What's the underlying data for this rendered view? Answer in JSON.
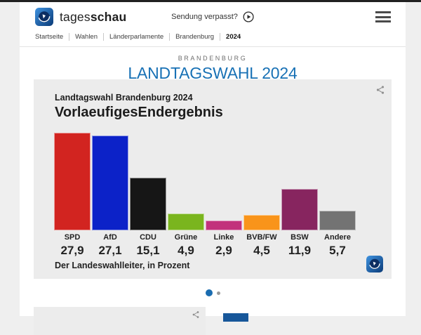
{
  "header": {
    "brand": {
      "light": "tages",
      "bold": "schau"
    },
    "sendung_verpasst": "Sendung verpasst?",
    "breadcrumb": [
      "Startseite",
      "Wahlen",
      "Länderparlamente",
      "Brandenburg",
      "2024"
    ]
  },
  "hero": {
    "eyebrow": "BRANDENBURG",
    "title": "LANDTAGSWAHL 2024"
  },
  "chart_card": {
    "kicker": "Landtagswahl Brandenburg 2024",
    "title": "VorlaeufigesEndergebnis",
    "source": "Der Landeswahlleiter, in Prozent"
  },
  "chart_data": {
    "type": "bar",
    "subtitle": "Landtagswahl Brandenburg 2024",
    "title": "VorlaeufigesEndergebnis",
    "categories": [
      "SPD",
      "AfD",
      "CDU",
      "Grüne",
      "Linke",
      "BVB/FW",
      "BSW",
      "Andere"
    ],
    "values": [
      27.9,
      27.1,
      15.1,
      4.9,
      2.9,
      4.5,
      11.9,
      5.7
    ],
    "value_labels": [
      "27,9",
      "27,1",
      "15,1",
      "4,9",
      "2,9",
      "4,5",
      "11,9",
      "5,7"
    ],
    "colors": [
      "#d22420",
      "#0c22c8",
      "#161616",
      "#7ab51e",
      "#c2327c",
      "#f9941a",
      "#87255f",
      "#737373"
    ],
    "ylabel": "Prozent",
    "ylim": [
      0,
      28
    ],
    "grid": false,
    "legend": "none",
    "source": "Der Landeswahlleiter, in Prozent"
  },
  "carousel": {
    "dots": [
      {
        "active": true
      },
      {
        "active": false
      }
    ]
  },
  "icons": {
    "share": "share-icon",
    "play": "play-circle-icon",
    "menu": "hamburger-menu-icon",
    "logo": "tagesschau-globe-icon"
  },
  "colors": {
    "accent_blue": "#1871b5",
    "dot_active": "#1a6cb0",
    "dot_inactive": "#9a9a9a",
    "card_bg": "#ececec",
    "page_bg": "#efefef",
    "bottom_blue": "#17579a"
  }
}
